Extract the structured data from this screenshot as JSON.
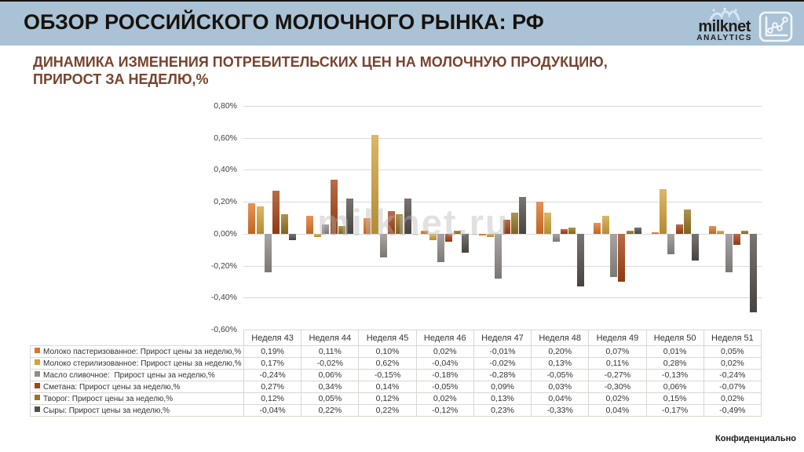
{
  "header": {
    "title": "ОБЗОР РОССИЙСКОГО МОЛОЧНОГО РЫНКА: РФ",
    "band_color": "#A9C2D6",
    "logo_name": "milknet",
    "logo_sub": "ANALYTICS"
  },
  "subtitle": {
    "line1": "ДИНАМИКА ИЗМЕНЕНИЯ ПОТРЕБИТЕЛЬСКИХ ЦЕН НА МОЛОЧНУЮ ПРОДУКЦИЮ,",
    "line2": "ПРИРОСТ ЗА НЕДЕЛЮ,%",
    "color": "#78432F"
  },
  "watermark": "milknet.ru",
  "footer": {
    "confidential": "Конфиденциально"
  },
  "chart_data": {
    "type": "bar",
    "categories": [
      "Неделя 43",
      "Неделя 44",
      "Неделя 45",
      "Неделя 46",
      "Неделя 47",
      "Неделя 48",
      "Неделя 49",
      "Неделя 50",
      "Неделя 51"
    ],
    "series": [
      {
        "name": "Молоко пастеризованное: Прирост цены за неделю,%",
        "color": "#DE7628",
        "values": [
          0.19,
          0.11,
          0.1,
          0.02,
          -0.01,
          0.2,
          0.07,
          0.01,
          0.05
        ]
      },
      {
        "name": "Молоко стерилизованное: Прирост цены за неделю,%",
        "color": "#D2A23A",
        "values": [
          0.17,
          -0.02,
          0.62,
          -0.04,
          -0.02,
          0.13,
          0.11,
          0.28,
          0.02
        ]
      },
      {
        "name": "Масло сливочное:  Прирост цены за неделю,%",
        "color": "#8F8B88",
        "values": [
          -0.24,
          0.06,
          -0.15,
          -0.18,
          -0.28,
          -0.05,
          -0.27,
          -0.13,
          -0.24
        ]
      },
      {
        "name": "Сметана: Прирост цены за неделю,%",
        "color": "#A54315",
        "values": [
          0.27,
          0.34,
          0.14,
          -0.05,
          0.09,
          0.03,
          -0.3,
          0.06,
          -0.07
        ]
      },
      {
        "name": "Творог: Прирост цены за неделю,%",
        "color": "#957521",
        "values": [
          0.12,
          0.05,
          0.12,
          0.02,
          0.13,
          0.04,
          0.02,
          0.15,
          0.02
        ]
      },
      {
        "name": "Сыры: Прирост цены за неделю,%",
        "color": "#534E49",
        "values": [
          -0.04,
          0.22,
          0.22,
          -0.12,
          0.23,
          -0.33,
          0.04,
          -0.17,
          -0.49
        ]
      }
    ],
    "ylim": [
      -0.6,
      0.8
    ],
    "ytick_values": [
      0.8,
      0.6,
      0.4,
      0.2,
      0.0,
      -0.2,
      -0.4,
      -0.6
    ],
    "ytick_labels": [
      "0,80%",
      "0,60%",
      "0,40%",
      "0,20%",
      "0,00%",
      "-0,20%",
      "-0,40%",
      "-0,60%"
    ],
    "grid": true,
    "legend_position": "table-left",
    "title": "ДИНАМИКА ИЗМЕНЕНИЯ ПОТРЕБИТЕЛЬСКИХ ЦЕН НА МОЛОЧНУЮ ПРОДУКЦИЮ, ПРИРОСТ ЗА НЕДЕЛЮ,%"
  },
  "table": {
    "rows": [
      {
        "cells": [
          "0,19%",
          "0,11%",
          "0,10%",
          "0,02%",
          "-0,01%",
          "0,20%",
          "0,07%",
          "0,01%",
          "0,05%"
        ]
      },
      {
        "cells": [
          "0,17%",
          "-0,02%",
          "0,62%",
          "-0,04%",
          "-0,02%",
          "0,13%",
          "0,11%",
          "0,28%",
          "0,02%"
        ]
      },
      {
        "cells": [
          "-0,24%",
          "0,06%",
          "-0,15%",
          "-0,18%",
          "-0,28%",
          "-0,05%",
          "-0,27%",
          "-0,13%",
          "-0,24%"
        ]
      },
      {
        "cells": [
          "0,27%",
          "0,34%",
          "0,14%",
          "-0,05%",
          "0,09%",
          "0,03%",
          "-0,30%",
          "0,06%",
          "-0,07%"
        ]
      },
      {
        "cells": [
          "0,12%",
          "0,05%",
          "0,12%",
          "0,02%",
          "0,13%",
          "0,04%",
          "0,02%",
          "0,15%",
          "0,02%"
        ]
      },
      {
        "cells": [
          "-0,04%",
          "0,22%",
          "0,22%",
          "-0,12%",
          "0,23%",
          "-0,33%",
          "0,04%",
          "-0,17%",
          "-0,49%"
        ]
      }
    ]
  }
}
